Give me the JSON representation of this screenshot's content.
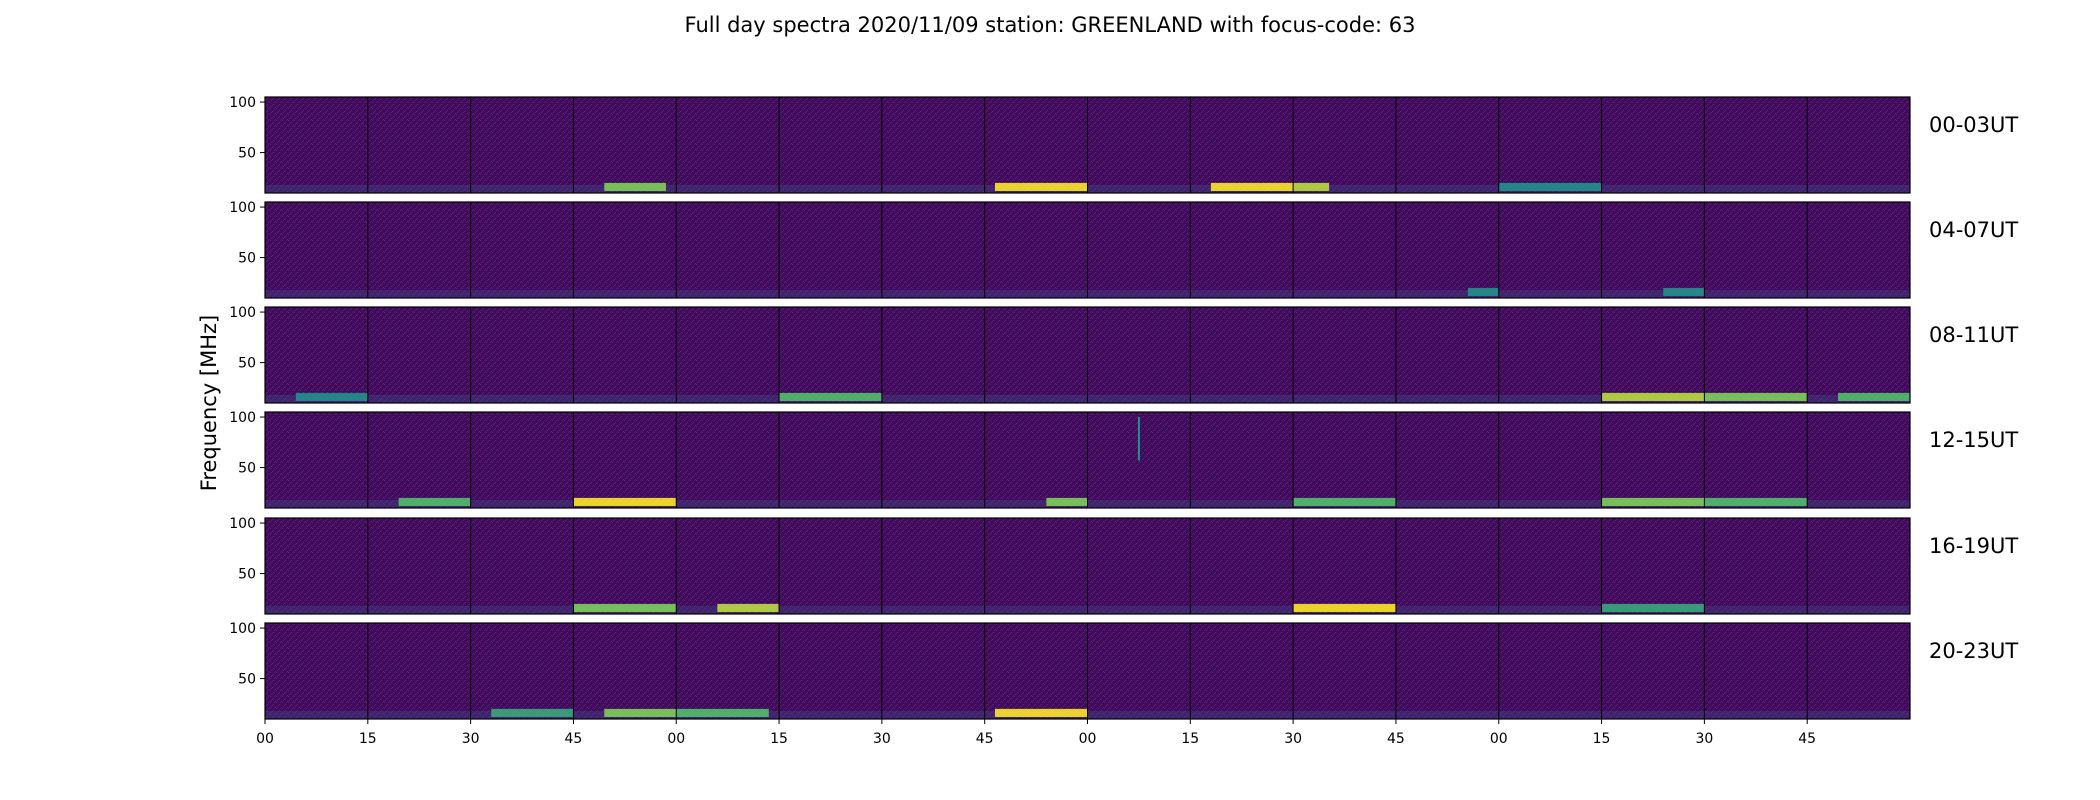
{
  "chart_data": {
    "type": "heatmap",
    "title": "Full day spectra 2020/11/09 station: GREENLAND with focus-code: 63",
    "ylabel": "Frequency [MHz]",
    "xlabel": "",
    "ylim": [
      10,
      105
    ],
    "yticks": [
      50,
      100
    ],
    "xticks": [
      "00",
      "15",
      "30",
      "45",
      "00",
      "15",
      "30",
      "45",
      "00",
      "15",
      "30",
      "45",
      "00",
      "15",
      "30",
      "45"
    ],
    "colormap": "viridis",
    "colors": {
      "background": "#440154",
      "low": "#3b528b",
      "mid": "#21918c",
      "high": "#fde725"
    },
    "rows": [
      {
        "label": "00-03UT",
        "panels": 16,
        "bands": [
          {
            "panel": 3,
            "from": 0.3,
            "to": 0.9,
            "intensity": 0.8
          },
          {
            "panel": 7,
            "from": 0.1,
            "to": 1.0,
            "intensity": 1.0
          },
          {
            "panel": 9,
            "from": 0.2,
            "to": 1.0,
            "intensity": 1.0
          },
          {
            "panel": 10,
            "from": 0.0,
            "to": 0.35,
            "intensity": 0.9
          },
          {
            "panel": 12,
            "from": 0.0,
            "to": 1.0,
            "intensity": 0.5
          }
        ]
      },
      {
        "label": "04-07UT",
        "panels": 16,
        "bands": [
          {
            "panel": 11,
            "from": 0.7,
            "to": 1.0,
            "intensity": 0.5
          },
          {
            "panel": 13,
            "from": 0.6,
            "to": 1.0,
            "intensity": 0.5
          }
        ]
      },
      {
        "label": "08-11UT",
        "panels": 16,
        "bands": [
          {
            "panel": 0,
            "from": 0.3,
            "to": 1.0,
            "intensity": 0.5
          },
          {
            "panel": 5,
            "from": 0.0,
            "to": 1.0,
            "intensity": 0.7
          },
          {
            "panel": 13,
            "from": 0.0,
            "to": 1.0,
            "intensity": 0.9
          },
          {
            "panel": 14,
            "from": 0.0,
            "to": 1.0,
            "intensity": 0.8
          },
          {
            "panel": 15,
            "from": 0.3,
            "to": 1.0,
            "intensity": 0.7
          }
        ]
      },
      {
        "label": "12-15UT",
        "panels": 16,
        "bands": [
          {
            "panel": 1,
            "from": 0.3,
            "to": 1.0,
            "intensity": 0.7
          },
          {
            "panel": 3,
            "from": 0.0,
            "to": 1.0,
            "intensity": 1.0
          },
          {
            "panel": 7,
            "from": 0.6,
            "to": 1.0,
            "intensity": 0.8
          },
          {
            "panel": 10,
            "from": 0.0,
            "to": 1.0,
            "intensity": 0.7
          },
          {
            "panel": 13,
            "from": 0.0,
            "to": 1.0,
            "intensity": 0.8
          },
          {
            "panel": 14,
            "from": 0.0,
            "to": 1.0,
            "intensity": 0.7
          }
        ]
      },
      {
        "label": "16-19UT",
        "panels": 16,
        "bands": [
          {
            "panel": 3,
            "from": 0.0,
            "to": 1.0,
            "intensity": 0.8
          },
          {
            "panel": 4,
            "from": 0.4,
            "to": 1.0,
            "intensity": 0.9
          },
          {
            "panel": 10,
            "from": 0.0,
            "to": 1.0,
            "intensity": 1.0
          },
          {
            "panel": 13,
            "from": 0.0,
            "to": 1.0,
            "intensity": 0.6
          }
        ]
      },
      {
        "label": "20-23UT",
        "panels": 16,
        "bands": [
          {
            "panel": 2,
            "from": 0.2,
            "to": 1.0,
            "intensity": 0.6
          },
          {
            "panel": 3,
            "from": 0.3,
            "to": 1.0,
            "intensity": 0.8
          },
          {
            "panel": 4,
            "from": 0.0,
            "to": 0.9,
            "intensity": 0.7
          },
          {
            "panel": 7,
            "from": 0.1,
            "to": 1.0,
            "intensity": 1.0
          }
        ]
      }
    ],
    "vertical_lines": [
      {
        "row": 3,
        "panel": 8,
        "at": 0.5,
        "from_mhz": 57,
        "to_mhz": 100
      }
    ]
  }
}
